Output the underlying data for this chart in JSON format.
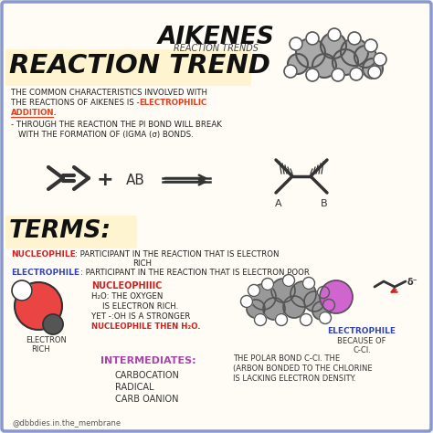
{
  "bg_color": "#fefcf5",
  "border_color": "#8899cc",
  "title": "AIKENES",
  "subtitle": "REACTION TRENDS",
  "section1_title": "REACTION TREND",
  "section1_bg": "#fef5d0",
  "section2_title": "TERMS:",
  "section2_bg": "#fef5d0",
  "highlight_color": "#e04020",
  "nucleo_color": "#cc2222",
  "electro_color": "#3344bb",
  "intermediates_color": "#aa44aa",
  "red_circle_color": "#e83030",
  "purple_circle_color": "#cc55cc",
  "gray_circle_color": "#888888",
  "footer": "@dbbdies.in.the_membrane"
}
